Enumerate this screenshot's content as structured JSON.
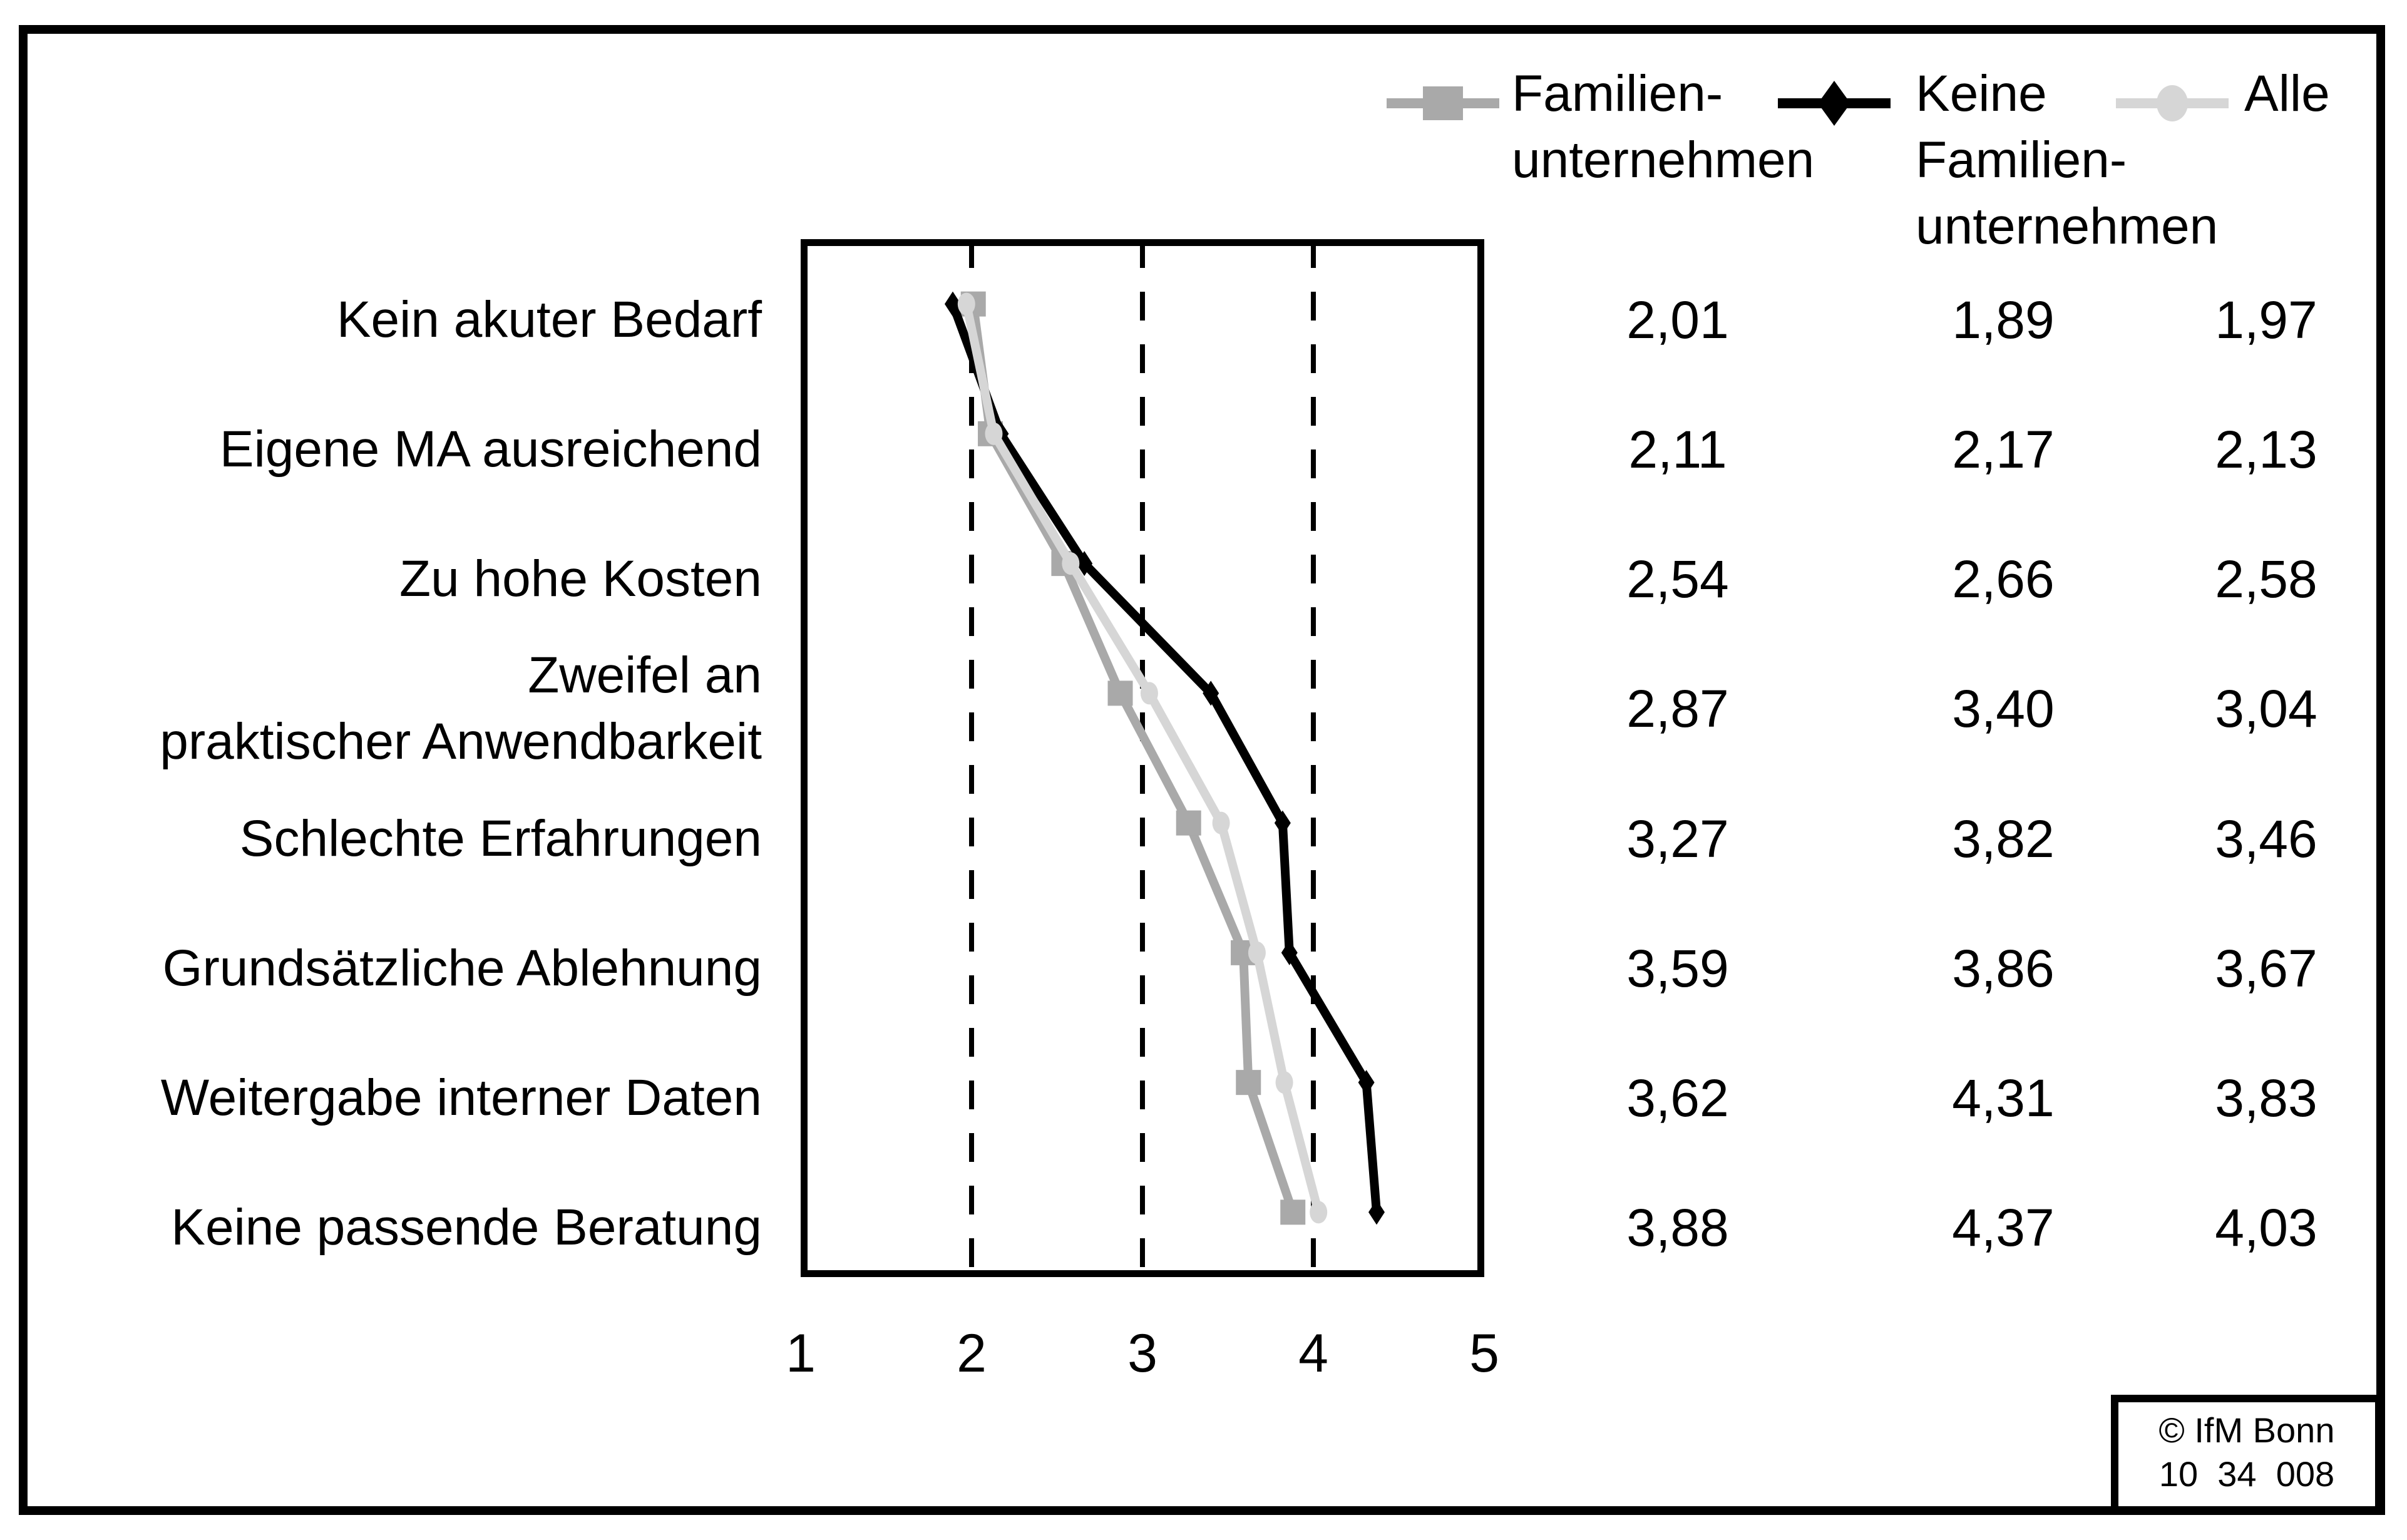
{
  "page": {
    "background": "#ffffff"
  },
  "colors": {
    "black": "#000000",
    "gray": "#a9a9a9",
    "light_gray": "#d6d6d6"
  },
  "legend": {
    "items": [
      {
        "name": "Familienunternehmen",
        "label_lines": [
          "Familien-",
          "unternehmen"
        ],
        "marker": "square",
        "color": "#a9a9a9"
      },
      {
        "name": "Keine Familienunternehmen",
        "label_lines": [
          "Keine",
          "Familien-",
          "unternehmen"
        ],
        "marker": "diamond",
        "color": "#000000"
      },
      {
        "name": "Alle",
        "label_lines": [
          "Alle"
        ],
        "marker": "circle",
        "color": "#d6d6d6"
      }
    ]
  },
  "chart_data": {
    "type": "line",
    "layout": "categories on y-axis (8 rows top to bottom), value axis horizontal",
    "categories": [
      "Kein akuter Bedarf",
      "Eigene MA ausreichend",
      "Zu hohe Kosten",
      "Zweifel an praktischer Anwendbarkeit",
      "Schlechte Erfahrungen",
      "Grundsätzliche Ablehnung",
      "Weitergabe interner Daten",
      "Keine passende Beratung"
    ],
    "category_label_lines": [
      [
        "Kein akuter Bedarf"
      ],
      [
        "Eigene MA ausreichend"
      ],
      [
        "Zu hohe Kosten"
      ],
      [
        "Zweifel an",
        "praktischer Anwendbarkeit"
      ],
      [
        "Schlechte Erfahrungen"
      ],
      [
        "Grundsätzliche Ablehnung"
      ],
      [
        "Weitergabe interner Daten"
      ],
      [
        "Keine passende Beratung"
      ]
    ],
    "series": [
      {
        "name": "Familienunternehmen",
        "marker": "square",
        "color": "#a9a9a9",
        "values": [
          2.01,
          2.11,
          2.54,
          2.87,
          3.27,
          3.59,
          3.62,
          3.88
        ]
      },
      {
        "name": "Keine Familienunternehmen",
        "marker": "diamond",
        "color": "#000000",
        "values": [
          1.89,
          2.17,
          2.66,
          3.4,
          3.82,
          3.86,
          4.31,
          4.37
        ]
      },
      {
        "name": "Alle",
        "marker": "circle",
        "color": "#d6d6d6",
        "values": [
          1.97,
          2.13,
          2.58,
          3.04,
          3.46,
          3.67,
          3.83,
          4.03
        ]
      }
    ],
    "xlim": [
      1,
      5
    ],
    "xticks": [
      "1",
      "2",
      "3",
      "4",
      "5"
    ],
    "gridlines_at": [
      2,
      3,
      4
    ],
    "grid_style": "vertical dashed black lines",
    "legend_position": "top-right"
  },
  "value_table": {
    "column_order": [
      "Familienunternehmen",
      "Keine Familienunternehmen",
      "Alle"
    ],
    "rows": [
      [
        "2,01",
        "1,89",
        "1,97"
      ],
      [
        "2,11",
        "2,17",
        "2,13"
      ],
      [
        "2,54",
        "2,66",
        "2,58"
      ],
      [
        "2,87",
        "3,40",
        "3,04"
      ],
      [
        "3,27",
        "3,82",
        "3,46"
      ],
      [
        "3,59",
        "3,86",
        "3,67"
      ],
      [
        "3,62",
        "4,31",
        "3,83"
      ],
      [
        "3,88",
        "4,37",
        "4,03"
      ]
    ]
  },
  "footer": {
    "copyright": "© IfM Bonn",
    "code": "10  34  008"
  }
}
